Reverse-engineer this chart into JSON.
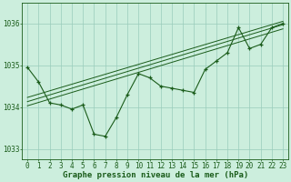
{
  "title": "Graphe pression niveau de la mer (hPa)",
  "x_values": [
    0,
    1,
    2,
    3,
    4,
    5,
    6,
    7,
    8,
    9,
    10,
    11,
    12,
    13,
    14,
    15,
    16,
    17,
    18,
    19,
    20,
    21,
    22,
    23
  ],
  "main_line": [
    1034.95,
    1034.6,
    1034.1,
    1034.05,
    1033.95,
    1034.05,
    1033.35,
    1033.3,
    1033.75,
    1034.3,
    1034.8,
    1034.7,
    1034.5,
    1034.45,
    1034.4,
    1034.35,
    1034.9,
    1035.1,
    1035.3,
    1035.9,
    1035.4,
    1035.5,
    1035.9,
    1036.0
  ],
  "trend_line1_pts": [
    [
      0,
      1034.03
    ],
    [
      23,
      1035.87
    ]
  ],
  "trend_line2_pts": [
    [
      0,
      1034.13
    ],
    [
      23,
      1035.97
    ]
  ],
  "trend_line3_pts": [
    [
      0,
      1034.23
    ],
    [
      23,
      1036.05
    ]
  ],
  "line_color": "#1a5c1a",
  "bg_color": "#cceedd",
  "grid_color": "#99ccbb",
  "ylim": [
    1032.75,
    1036.5
  ],
  "yticks": [
    1033,
    1034,
    1035,
    1036
  ],
  "tick_fontsize": 5.5,
  "xlabel_fontsize": 6.5
}
